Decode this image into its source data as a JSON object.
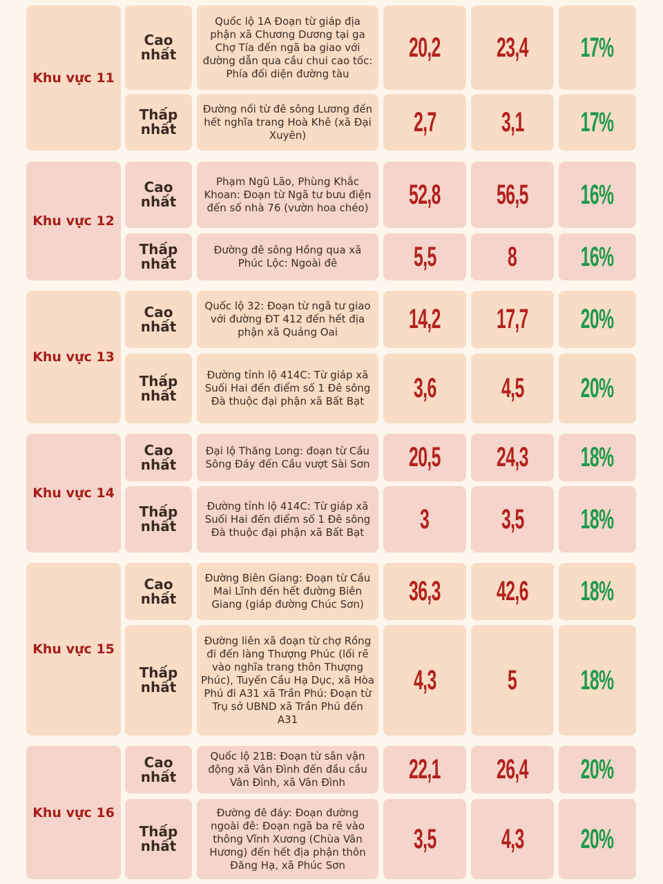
{
  "colors": {
    "region_text": "#a51d1a",
    "price_red": "#b3211d",
    "percent_green": "#1e9a4b",
    "cell_peach": "#f8dcc5",
    "cell_pink": "#f5d5cb",
    "background": "#fdf6ec"
  },
  "regions": [
    {
      "name": "Khu vực 11",
      "rows": [
        {
          "level": "Cao nhất",
          "location": "Quốc lộ 1A Đoạn từ giáp địa phận xã Chương Dương tại ga Chợ Tía đến ngã ba giao với đường dẫn qua cầu chui cao tốc: Phía đối diện đường tàu",
          "old": "20,2",
          "new": "23,4",
          "change": "17%"
        },
        {
          "level": "Thấp nhất",
          "location": "Đường nối từ đê sông Lương đến hết nghĩa trang Hoà Khê (xã Đại Xuyên)",
          "old": "2,7",
          "new": "3,1",
          "change": "17%"
        }
      ]
    },
    {
      "name": "Khu vực 12",
      "rows": [
        {
          "level": "Cao nhất",
          "location": "Phạm Ngũ Lão, Phùng Khắc Khoan: Đoạn từ Ngã tư bưu điện đến số nhà 76 (vườn hoa chéo)",
          "old": "52,8",
          "new": "56,5",
          "change": "16%"
        },
        {
          "level": "Thấp nhất",
          "location": "Đường đê sông Hồng qua xã Phúc Lộc: Ngoài đê",
          "old": "5,5",
          "new": "8",
          "change": "16%"
        }
      ]
    },
    {
      "name": "Khu vực 13",
      "rows": [
        {
          "level": "Cao nhất",
          "location": "Quốc lộ 32: Đoạn từ ngã tư giao với đường ĐT 412 đến hết địa phận xã Quảng Oai",
          "old": "14,2",
          "new": "17,7",
          "change": "20%"
        },
        {
          "level": "Thấp nhất",
          "location": "Đường tỉnh lộ 414C: Từ giáp xã Suối Hai đến điểm số 1 Đê sông Đà thuộc đại phận xã Bất Bạt",
          "old": "3,6",
          "new": "4,5",
          "change": "20%"
        }
      ]
    },
    {
      "name": "Khu vực 14",
      "rows": [
        {
          "level": "Cao nhất",
          "location": "Đại lộ Thăng Long: đoạn từ Cầu Sông Đáy đến Cầu vượt Sài Sơn",
          "old": "20,5",
          "new": "24,3",
          "change": "18%"
        },
        {
          "level": "Thấp nhất",
          "location": "Đường tỉnh lộ 414C: Từ giáp xã Suối Hai đến điểm số 1 Đê sông Đà thuộc đại phận xã Bất Bạt",
          "old": "3",
          "new": "3,5",
          "change": "18%"
        }
      ]
    },
    {
      "name": "Khu vực 15",
      "rows": [
        {
          "level": "Cao nhất",
          "location": "Đường Biên Giang: Đoạn từ Cầu Mai Lĩnh đến hết đường Biên Giang (giáp đường Chúc Sơn)",
          "old": "36,3",
          "new": "42,6",
          "change": "18%"
        },
        {
          "level": "Thấp nhất",
          "location": "Đường liên xã đoạn từ chợ Rồng đi đến làng Thượng Phúc (lối rẽ vào nghĩa trang thôn Thượng Phúc), Tuyến Cầu Hạ Dục, xã Hòa Phú đi A31 xã Trần Phú: Đoạn từ Trụ sở UBND xã Trần Phú đến A31",
          "old": "4,3",
          "new": "5",
          "change": "18%"
        }
      ]
    },
    {
      "name": "Khu vực 16",
      "rows": [
        {
          "level": "Cao nhất",
          "location": "Quốc lộ 21B: Đoạn từ sân vận động xã Vân Đình đến đầu cầu Vân Đình, xã Vân Đình",
          "old": "22,1",
          "new": "26,4",
          "change": "20%"
        },
        {
          "level": "Thấp nhất",
          "location": "Đường đê đáy: Đoạn đường ngoài đê: Đoạn ngã ba rẽ vào thông Vĩnh Xương (Chùa Vân Hương) đến hết địa phận thôn Đăng Hạ, xã Phúc Sơn",
          "old": "3,5",
          "new": "4,3",
          "change": "20%"
        }
      ]
    }
  ]
}
